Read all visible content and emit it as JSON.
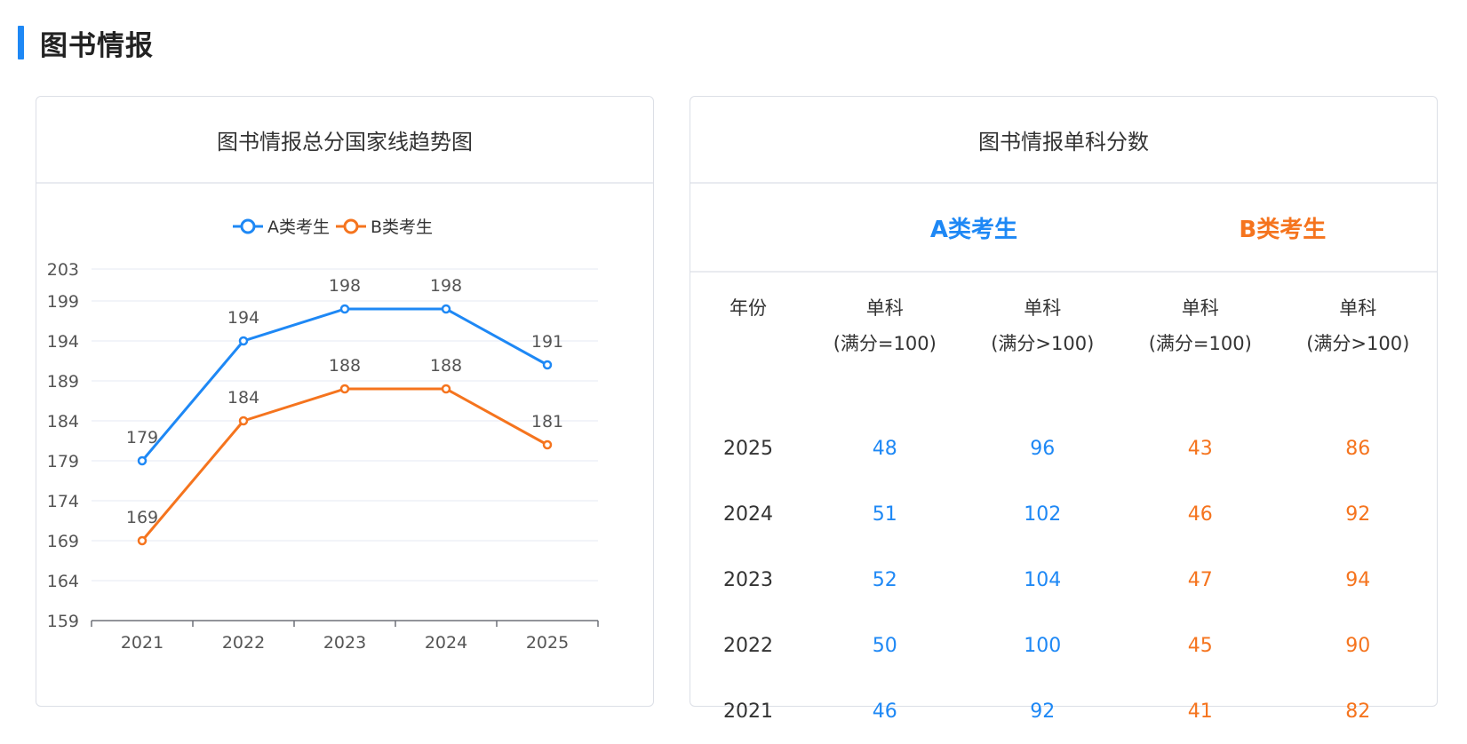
{
  "page": {
    "section_title": "图书情报",
    "accent_color": "#1e88f5"
  },
  "left_card": {
    "title": "图书情报总分国家线趋势图"
  },
  "chart_data": {
    "type": "line",
    "title": "图书情报总分国家线趋势图",
    "categories": [
      "2021",
      "2022",
      "2023",
      "2024",
      "2025"
    ],
    "y_ticks": [
      159,
      164,
      169,
      174,
      179,
      184,
      189,
      194,
      199,
      203
    ],
    "ylim": [
      159,
      203
    ],
    "legend_position": "top-center",
    "series": [
      {
        "name": "A类考生",
        "color": "#1e88f5",
        "values": [
          179,
          194,
          198,
          198,
          191
        ]
      },
      {
        "name": "B类考生",
        "color": "#f5741e",
        "values": [
          169,
          184,
          188,
          188,
          181
        ]
      }
    ]
  },
  "right_card": {
    "title": "图书情报单科分数",
    "group_a_label": "A类考生",
    "group_b_label": "B类考生",
    "group_a_color": "#1e88f5",
    "group_b_color": "#f5741e",
    "headers": {
      "year": "年份",
      "a_100_line1": "单科",
      "a_100_line2": "(满分=100)",
      "a_over_line1": "单科",
      "a_over_line2": "(满分>100)",
      "b_100_line1": "单科",
      "b_100_line2": "(满分=100)",
      "b_over_line1": "单科",
      "b_over_line2": "(满分>100)"
    },
    "rows": [
      {
        "year": "2025",
        "a100": "48",
        "aover": "96",
        "b100": "43",
        "bover": "86"
      },
      {
        "year": "2024",
        "a100": "51",
        "aover": "102",
        "b100": "46",
        "bover": "92"
      },
      {
        "year": "2023",
        "a100": "52",
        "aover": "104",
        "b100": "47",
        "bover": "94"
      },
      {
        "year": "2022",
        "a100": "50",
        "aover": "100",
        "b100": "45",
        "bover": "90"
      },
      {
        "year": "2021",
        "a100": "46",
        "aover": "92",
        "b100": "41",
        "bover": "82"
      }
    ]
  }
}
